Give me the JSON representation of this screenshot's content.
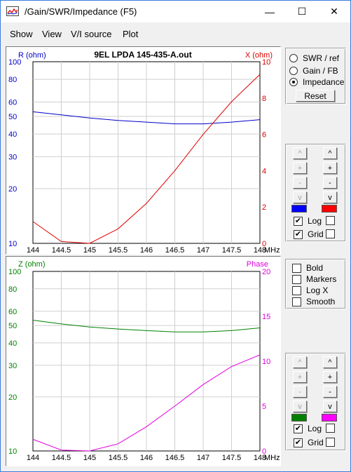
{
  "window": {
    "title": "/Gain/SWR/Impedance (F5)"
  },
  "controls": {
    "minimize": "—",
    "maximize": "☐",
    "close": "✕"
  },
  "menu": [
    "Show",
    "View",
    "V/I source",
    "Plot"
  ],
  "top_plot": {
    "title": "9EL LPDA 145-435-A.out",
    "left_axis_label": "R (ohm)",
    "right_axis_label": "X (ohm)",
    "left_color": "#0000c8",
    "right_color": "#dc0000",
    "left_ticks": [
      "100",
      "80",
      "60",
      "50",
      "40",
      "30",
      "20",
      "10"
    ],
    "right_ticks": [
      "10",
      "8",
      "6",
      "4",
      "2",
      "0"
    ],
    "x_ticks": [
      "144",
      "144.5",
      "145",
      "145.5",
      "146",
      "146.5",
      "147",
      "147.5",
      "148"
    ],
    "x_unit": "MHz"
  },
  "bottom_plot": {
    "left_axis_label": "Z (ohm)",
    "right_axis_label": "Phase",
    "left_color": "#008000",
    "right_color": "#e000e0",
    "left_ticks": [
      "100",
      "80",
      "60",
      "50",
      "40",
      "30",
      "20",
      "10"
    ],
    "right_ticks": [
      "20",
      "15",
      "10",
      "5",
      "0"
    ],
    "x_ticks": [
      "144",
      "144.5",
      "145",
      "145.5",
      "146",
      "146.5",
      "147",
      "147.5",
      "148"
    ],
    "x_unit": "MHz"
  },
  "chart_data": [
    {
      "type": "line",
      "title": "9EL LPDA 145-435-A.out",
      "xlabel": "MHz",
      "x": [
        144,
        144.5,
        145,
        145.5,
        146,
        146.5,
        147,
        147.5,
        148
      ],
      "xlim": [
        144,
        148
      ],
      "series": [
        {
          "name": "R (ohm)",
          "axis": "left",
          "scale": "log",
          "ylim": [
            10,
            100
          ],
          "color": "#0000c8",
          "values": [
            53,
            51,
            49,
            47.5,
            46.5,
            45.5,
            45.5,
            46.5,
            48
          ]
        },
        {
          "name": "X (ohm)",
          "axis": "right",
          "ylim": [
            0,
            10
          ],
          "color": "#dc0000",
          "values": [
            1.2,
            0.1,
            0,
            0.8,
            2.2,
            4.0,
            6.0,
            7.8,
            9.3
          ]
        }
      ],
      "grid": true
    },
    {
      "type": "line",
      "xlabel": "MHz",
      "x": [
        144,
        144.5,
        145,
        145.5,
        146,
        146.5,
        147,
        147.5,
        148
      ],
      "xlim": [
        144,
        148
      ],
      "series": [
        {
          "name": "Z (ohm)",
          "axis": "left",
          "scale": "log",
          "ylim": [
            10,
            100
          ],
          "color": "#008000",
          "values": [
            53.5,
            51,
            49,
            47.8,
            46.8,
            46,
            46,
            46.8,
            48.5
          ]
        },
        {
          "name": "Phase",
          "axis": "right",
          "ylim": [
            0,
            20
          ],
          "color": "#e000e0",
          "values": [
            1.3,
            0.1,
            0,
            0.8,
            2.7,
            5.0,
            7.4,
            9.4,
            10.7
          ]
        }
      ],
      "grid": true
    }
  ],
  "top_options": {
    "radios": [
      {
        "label": "SWR / ref",
        "checked": false
      },
      {
        "label": "Gain / FB",
        "checked": false
      },
      {
        "label": "Impedance",
        "checked": true
      }
    ],
    "reset_label": "Reset"
  },
  "top_scale": {
    "left_buttons": [
      "^",
      "+",
      "-",
      "v"
    ],
    "right_buttons": [
      "^",
      "+",
      "-",
      "v"
    ],
    "log_label": "Log",
    "grid_label": "Grid",
    "left_color": "#0000ff",
    "right_color": "#ff0000"
  },
  "bottom_options": {
    "checks": [
      {
        "label": "Bold",
        "checked": false
      },
      {
        "label": "Markers",
        "checked": false
      },
      {
        "label": "Log X",
        "checked": false
      },
      {
        "label": "Smooth",
        "checked": false
      }
    ]
  },
  "bottom_scale": {
    "left_buttons": [
      "^",
      "+",
      "-",
      "v"
    ],
    "right_buttons": [
      "^",
      "+",
      "-",
      "v"
    ],
    "log_label": "Log",
    "grid_label": "Grid",
    "left_color": "#008000",
    "right_color": "#ff00ff"
  }
}
